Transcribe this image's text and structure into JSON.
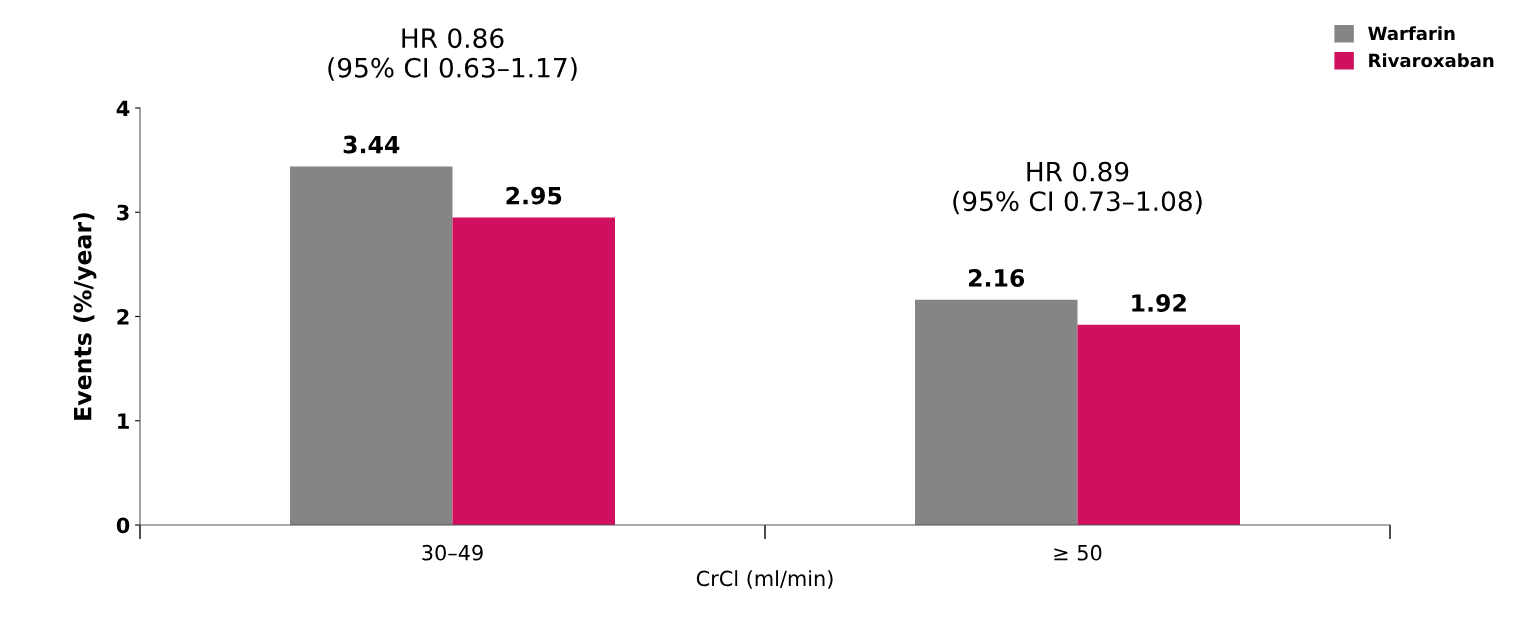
{
  "chart_data": {
    "type": "bar",
    "xlabel": "CrCl (ml/min)",
    "ylabel": "Events (%/year)",
    "categories": [
      "30–49",
      "≥ 50"
    ],
    "series": [
      {
        "name": "Warfarin",
        "color": "#858585",
        "values": [
          3.44,
          2.16
        ]
      },
      {
        "name": "Rivaroxaban",
        "color": "#d0105f",
        "values": [
          2.95,
          1.92
        ]
      }
    ],
    "ylim": [
      0,
      4
    ],
    "yticks": [
      0,
      1,
      2,
      3,
      4
    ],
    "grid": false,
    "legend": "top right",
    "data_labels": true,
    "annotations": [
      "HR 0.86\n(95% CI 0.63–1.17)",
      "HR 0.89\n(95% CI 0.73–1.08)"
    ]
  }
}
